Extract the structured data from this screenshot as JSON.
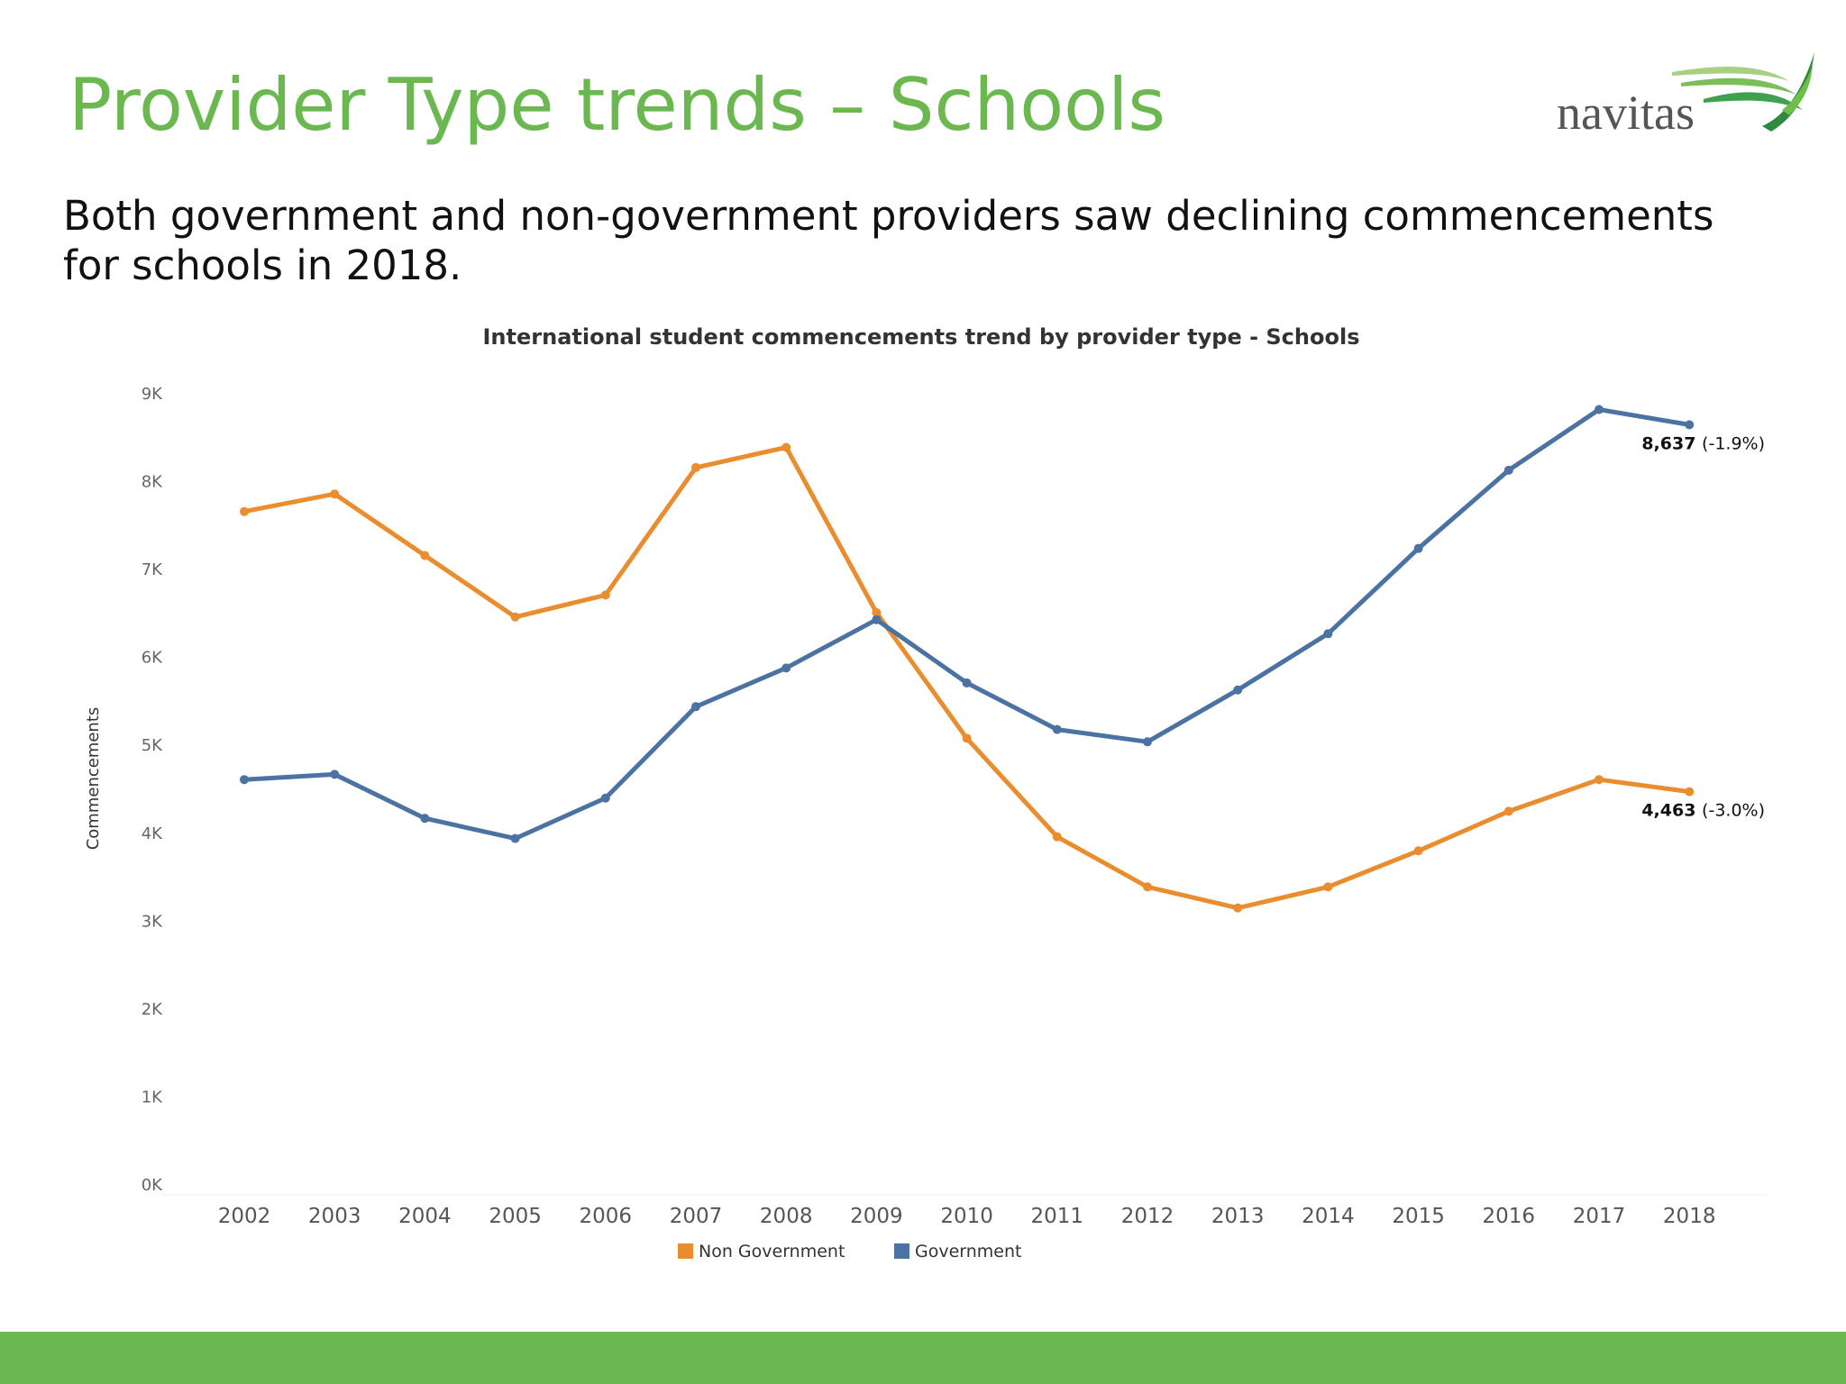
{
  "slide": {
    "title": "Provider Type trends – Schools",
    "subtitle": "Both government and non-government providers saw declining commencements for schools in 2018.",
    "logo_text": "navitas",
    "accent_color": "#6ab84f"
  },
  "chart_data": {
    "type": "line",
    "title": "International student commencements trend by provider type - Schools",
    "xlabel": "",
    "ylabel": "Commencements",
    "ylim": [
      0,
      9000
    ],
    "yticks": [
      "0K",
      "1K",
      "2K",
      "3K",
      "4K",
      "5K",
      "6K",
      "7K",
      "8K",
      "9K"
    ],
    "categories": [
      "2002",
      "2003",
      "2004",
      "2005",
      "2006",
      "2007",
      "2008",
      "2009",
      "2010",
      "2011",
      "2012",
      "2013",
      "2014",
      "2015",
      "2016",
      "2017",
      "2018"
    ],
    "grid": false,
    "legend_position": "bottom",
    "series": [
      {
        "name": "Non Government",
        "color": "#e98d2e",
        "values": [
          7650,
          7850,
          7150,
          6450,
          6700,
          8150,
          8380,
          6500,
          5070,
          3950,
          3380,
          3140,
          3380,
          3790,
          4240,
          4600,
          4463
        ],
        "end_label": {
          "value": "4,463",
          "change": "(-3.0%)"
        }
      },
      {
        "name": "Government",
        "color": "#4a72a2",
        "values": [
          4600,
          4660,
          4160,
          3930,
          4390,
          5430,
          5870,
          6420,
          5700,
          5170,
          5030,
          5620,
          6260,
          7230,
          8120,
          8810,
          8637
        ],
        "end_label": {
          "value": "8,637",
          "change": "(-1.9%)"
        }
      }
    ]
  }
}
